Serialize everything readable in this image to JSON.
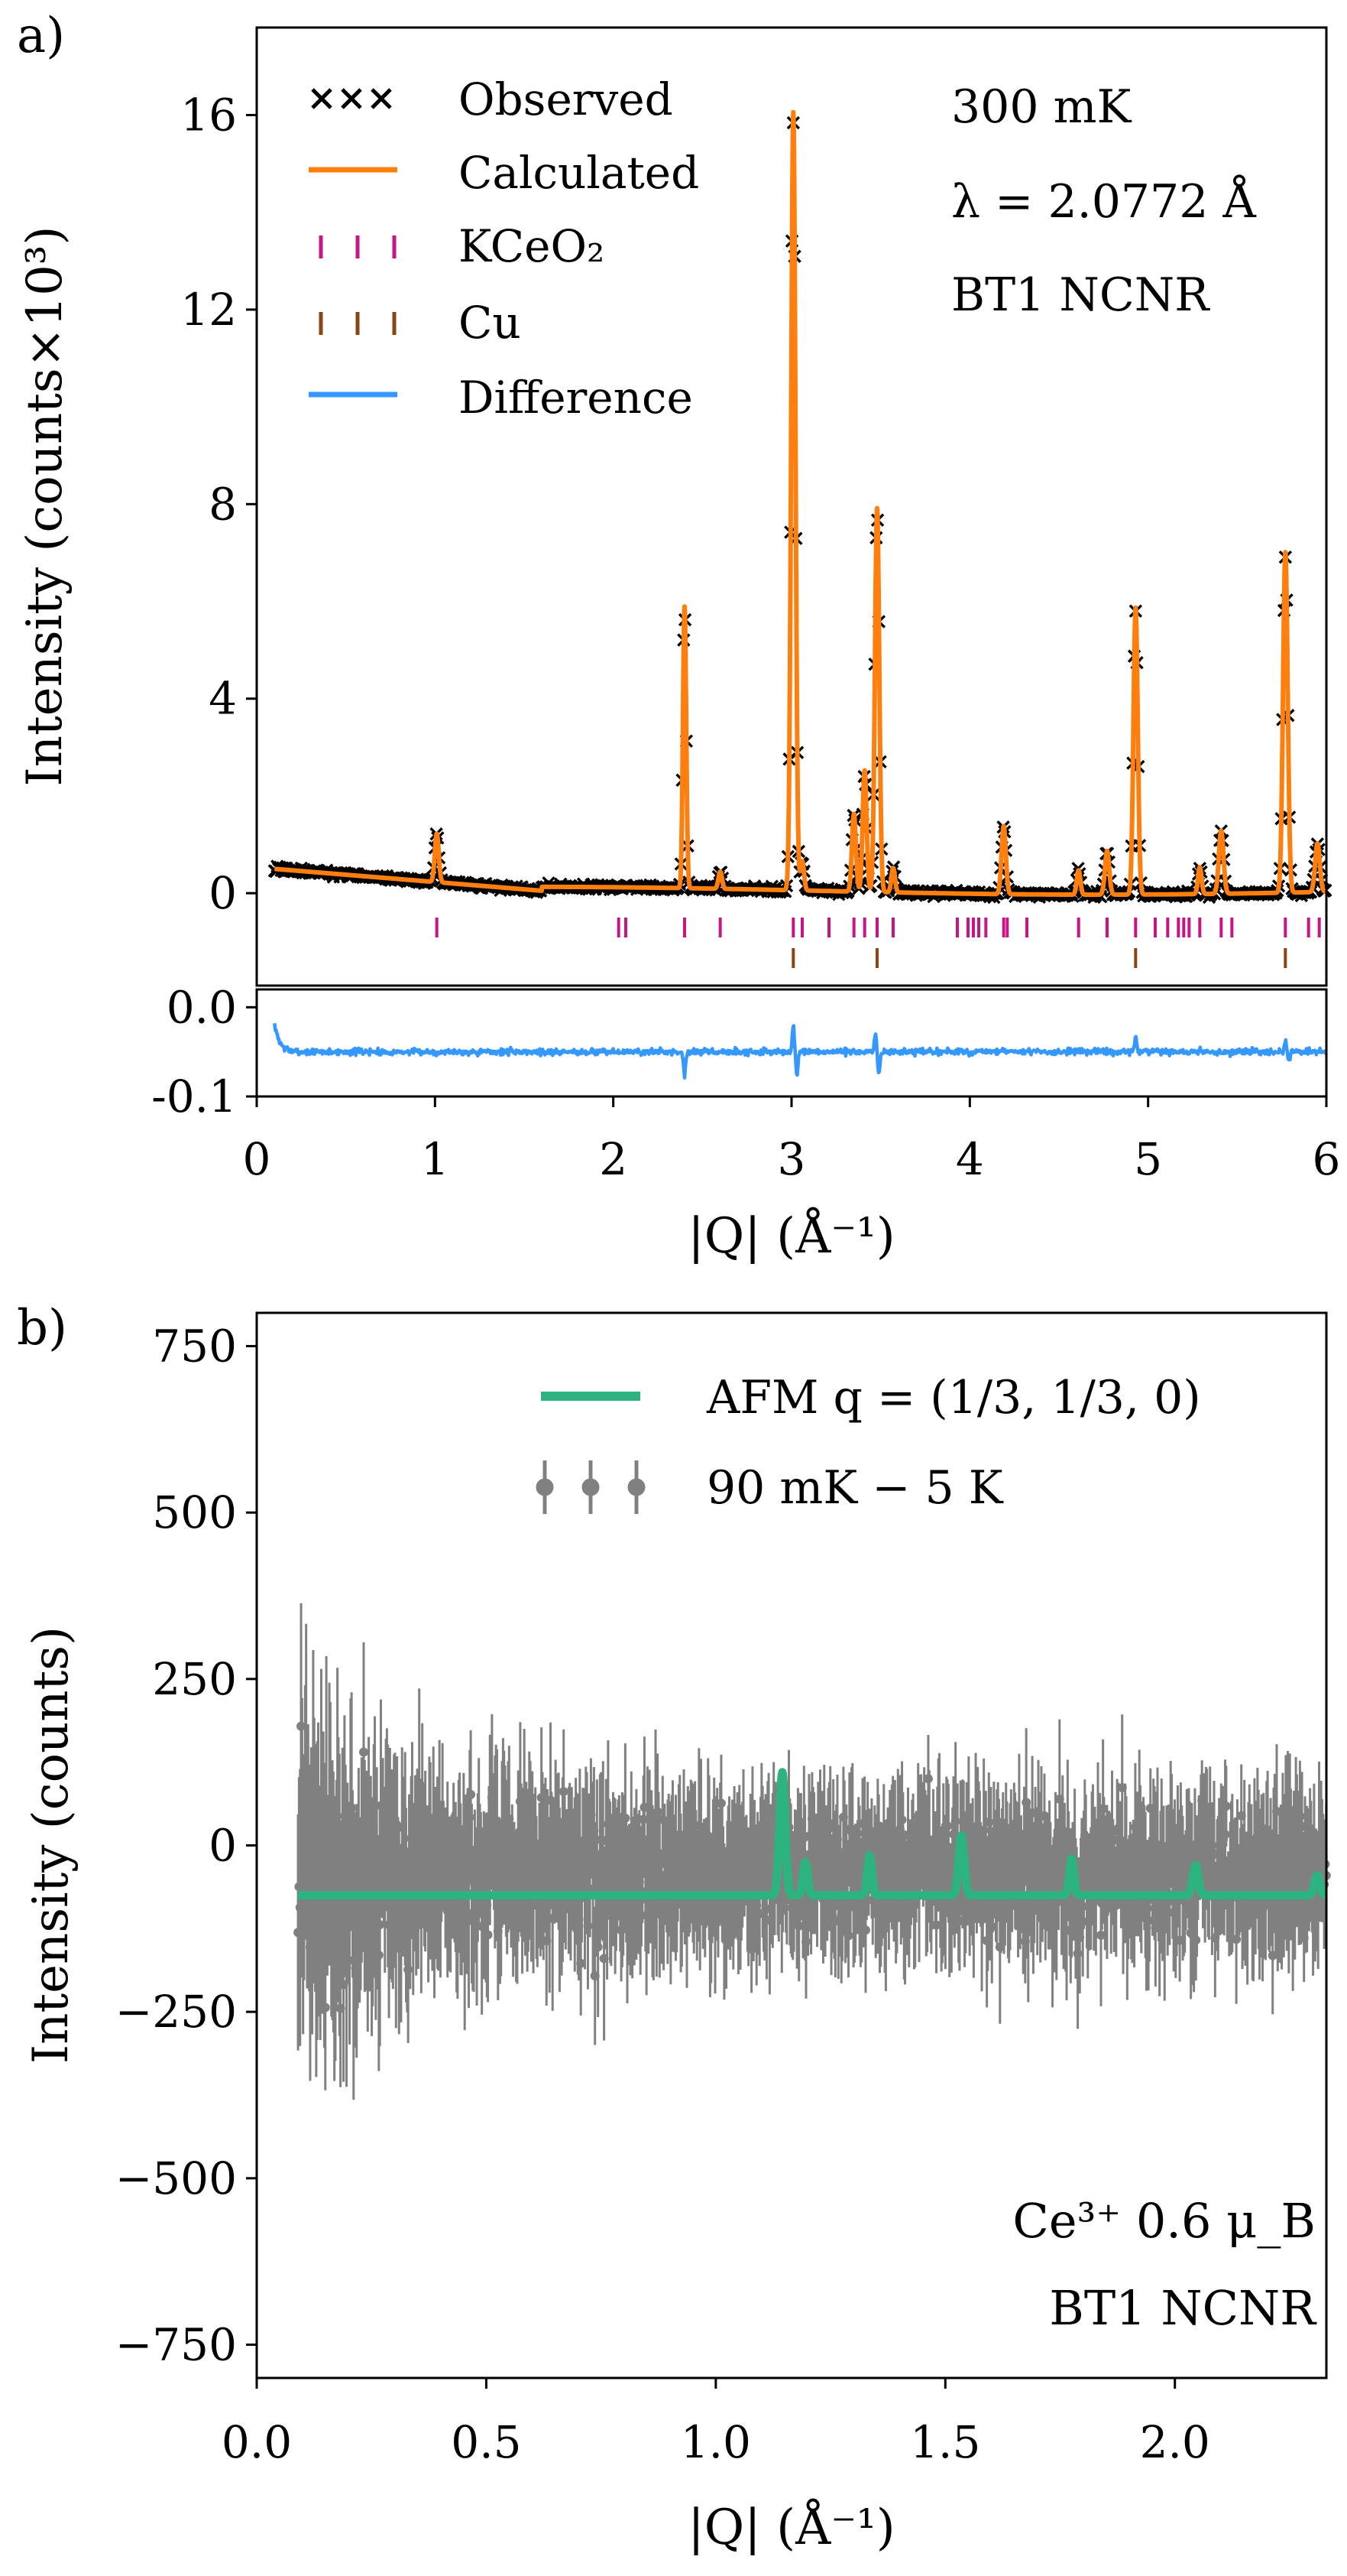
{
  "figure": {
    "panel_a_label": "a)",
    "panel_b_label": "b)"
  },
  "chart_data": [
    {
      "panel": "a",
      "type": "scatter",
      "subplot": "top",
      "xlim": [
        0,
        6
      ],
      "ylim": [
        -1.9,
        17.8
      ],
      "yticks": [
        0,
        4,
        8,
        12,
        16
      ],
      "ylabel": "Intensity (counts×10³)",
      "grid": false,
      "legend_position": "top-left",
      "legend": [
        "Observed",
        "Calculated",
        "KCeO₂",
        "Cu",
        "Difference"
      ],
      "annotations": [
        "300 mK",
        "λ = 2.0772 Å",
        "BT1 NCNR"
      ],
      "colors": {
        "observed": "#000000",
        "calculated": "#ff7f0e",
        "kceo2": "#c71585",
        "cu": "#8b4513",
        "difference": "#3498ff"
      },
      "background": {
        "start": 0.5,
        "end": 0.05
      },
      "peaks": [
        {
          "q": 1.01,
          "height": 1.0,
          "width": 0.011
        },
        {
          "q": 2.4,
          "height": 5.8,
          "width": 0.009
        },
        {
          "q": 2.6,
          "height": 0.35,
          "width": 0.01
        },
        {
          "q": 3.01,
          "height": 16.0,
          "width": 0.012
        },
        {
          "q": 3.06,
          "height": 0.6,
          "width": 0.01
        },
        {
          "q": 3.35,
          "height": 1.6,
          "width": 0.011
        },
        {
          "q": 3.41,
          "height": 2.5,
          "width": 0.011
        },
        {
          "q": 3.48,
          "height": 7.9,
          "width": 0.012
        },
        {
          "q": 3.57,
          "height": 0.5,
          "width": 0.01
        },
        {
          "q": 4.19,
          "height": 1.4,
          "width": 0.012
        },
        {
          "q": 4.61,
          "height": 0.5,
          "width": 0.01
        },
        {
          "q": 4.77,
          "height": 0.9,
          "width": 0.012
        },
        {
          "q": 4.93,
          "height": 5.9,
          "width": 0.012
        },
        {
          "q": 5.29,
          "height": 0.55,
          "width": 0.01
        },
        {
          "q": 5.41,
          "height": 1.3,
          "width": 0.013
        },
        {
          "q": 5.77,
          "height": 7.0,
          "width": 0.013
        },
        {
          "q": 5.95,
          "height": 1.0,
          "width": 0.013
        }
      ],
      "kceo2_ticks": [
        1.01,
        2.03,
        2.07,
        2.4,
        2.6,
        3.01,
        3.06,
        3.21,
        3.35,
        3.41,
        3.48,
        3.57,
        3.93,
        3.99,
        4.02,
        4.05,
        4.09,
        4.19,
        4.21,
        4.32,
        4.61,
        4.77,
        4.93,
        5.04,
        5.11,
        5.17,
        5.2,
        5.23,
        5.29,
        5.41,
        5.47,
        5.77,
        5.9,
        5.96
      ],
      "cu_ticks": [
        3.01,
        3.48,
        4.93,
        5.77
      ]
    },
    {
      "panel": "a",
      "type": "line",
      "subplot": "difference",
      "xlim": [
        0,
        6
      ],
      "ylim": [
        -0.1,
        0.02
      ],
      "yticks": [
        -0.1,
        0.0
      ],
      "xticks": [
        0,
        1,
        2,
        3,
        4,
        5,
        6
      ],
      "xlabel": "|Q| (Å⁻¹)",
      "baseline": -0.05,
      "spikes": [
        {
          "q": 0.1,
          "amp": 0.03
        },
        {
          "q": 2.4,
          "amp": -0.025
        },
        {
          "q": 3.01,
          "amp": 0.028
        },
        {
          "q": 3.03,
          "amp": -0.028
        },
        {
          "q": 3.47,
          "amp": 0.02
        },
        {
          "q": 3.49,
          "amp": -0.025
        },
        {
          "q": 4.93,
          "amp": 0.015
        },
        {
          "q": 5.77,
          "amp": 0.012
        },
        {
          "q": 5.79,
          "amp": -0.012
        }
      ]
    },
    {
      "panel": "b",
      "type": "scatter",
      "xlim": [
        0,
        2.33
      ],
      "ylim": [
        -800,
        800
      ],
      "yticks": [
        -750,
        -500,
        -250,
        0,
        250,
        500,
        750
      ],
      "ytick_labels": [
        "−750",
        "−500",
        "−250",
        "0",
        "250",
        "500",
        "750"
      ],
      "xticks": [
        0.0,
        0.5,
        1.0,
        1.5,
        2.0
      ],
      "xtick_labels": [
        "0.0",
        "0.5",
        "1.0",
        "1.5",
        "2.0"
      ],
      "xlabel": "|Q| (Å⁻¹)",
      "ylabel": "Intensity (counts)",
      "grid": false,
      "legend_position": "top-right",
      "legend": [
        "AFM q = (1/3, 1/3, 0)",
        "90 mK − 5 K"
      ],
      "annotations": [
        "Ce³⁺ 0.6 μ_B",
        "BT1 NCNR"
      ],
      "colors": {
        "afm": "#2db37f",
        "data": "#808080"
      },
      "q_start": 0.09,
      "afm_baseline": -75,
      "afm_peaks": [
        {
          "q": 1.145,
          "height": 185,
          "width": 0.006
        },
        {
          "q": 1.195,
          "height": 50,
          "width": 0.005
        },
        {
          "q": 1.335,
          "height": 60,
          "width": 0.005
        },
        {
          "q": 1.535,
          "height": 90,
          "width": 0.006
        },
        {
          "q": 1.775,
          "height": 55,
          "width": 0.005
        },
        {
          "q": 2.045,
          "height": 45,
          "width": 0.006
        },
        {
          "q": 2.31,
          "height": 30,
          "width": 0.006
        }
      ]
    }
  ]
}
